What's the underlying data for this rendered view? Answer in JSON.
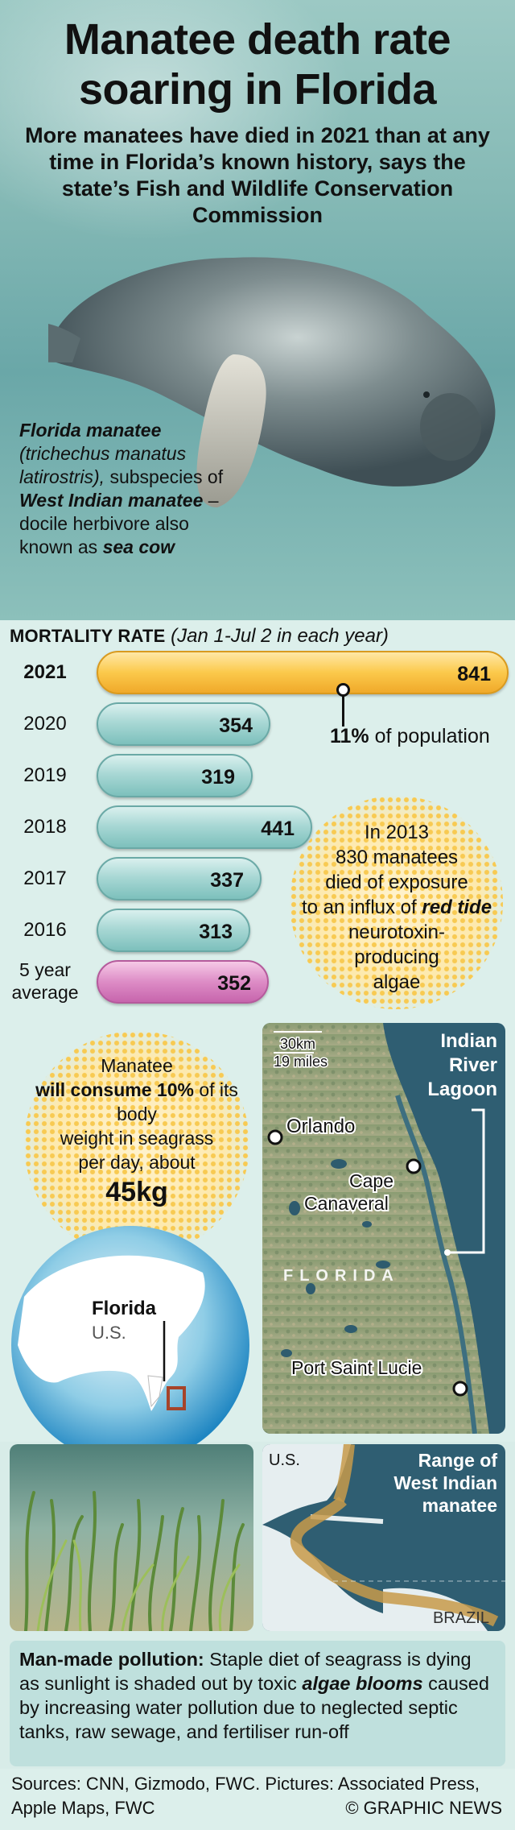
{
  "header": {
    "title_line1": "Manatee death rate",
    "title_line2": "soaring in Florida",
    "subtitle": "More manatees have died in 2021 than at any time in Florida’s known history, says the state’s Fish and Wildlife Conservation Commission"
  },
  "species": {
    "name": "Florida manatee",
    "latin": "(trichechus manatus latirostris),",
    "text1": " subspecies of ",
    "parent": "West Indian manatee",
    "text2": " – docile herbivore also known as ",
    "nickname": "sea cow"
  },
  "chart_data": {
    "type": "bar",
    "title": "MORTALITY RATE",
    "subtitle": "(Jan 1-Jul 2 in each year)",
    "categories": [
      "2021",
      "2020",
      "2019",
      "2018",
      "2017",
      "2016",
      "5 year average"
    ],
    "values": [
      841,
      354,
      319,
      441,
      337,
      313,
      352
    ],
    "annotation": {
      "value": "11%",
      "text": " of population"
    }
  },
  "note_2013": {
    "line1": "In 2013",
    "line2": "830 manatees",
    "line3": "died of exposure",
    "line4": "to an influx of ",
    "red_tide": "red tide",
    "line5": " neurotoxin-",
    "line6": "producing",
    "line7": "algae"
  },
  "consumption": {
    "line1": "Manatee",
    "line2a": "will consume",
    "line2b": "10%",
    "line2c": "of its body",
    "line3": "weight in seagrass",
    "line4": "per day, about",
    "amount": "45kg"
  },
  "globe": {
    "label": "Florida",
    "sublabel": "U.S."
  },
  "map": {
    "scale_km": "30km",
    "scale_mi": "19 miles",
    "lagoon": [
      "Indian",
      "River",
      "Lagoon"
    ],
    "cities": [
      "Orlando",
      "Cape",
      "Canaveral",
      "Port Saint Lucie"
    ],
    "state": "FLORIDA"
  },
  "range_map": {
    "us": "U.S.",
    "title": [
      "Range of",
      "West Indian",
      "manatee"
    ],
    "brazil": "BRAZIL"
  },
  "pollution": {
    "heading": "Man-made pollution:",
    "text1": " Staple diet of seagrass is dying as sunlight is shaded out by toxic ",
    "em": "algae blooms",
    "text2": " caused by increasing water pollution due to neglected septic tanks, raw sewage, and fertiliser run-off"
  },
  "footer": {
    "sources": "Sources: CNN, Gizmodo, FWC. Pictures: Associated Press, Apple Maps, FWC",
    "credit": "© GRAPHIC NEWS"
  }
}
